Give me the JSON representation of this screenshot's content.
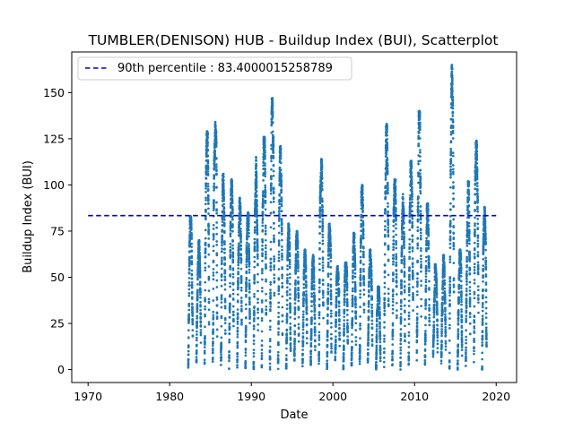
{
  "chart_data": {
    "type": "scatter",
    "title": "TUMBLER(DENISON) HUB - Buildup Index (BUI), Scatterplot",
    "xlabel": "Date",
    "ylabel": "Buildup Index (BUI)",
    "xlim": [
      1968,
      2022.5
    ],
    "ylim": [
      -7,
      172
    ],
    "x_ticks": [
      1970,
      1980,
      1990,
      2000,
      2010,
      2020
    ],
    "y_ticks": [
      0,
      25,
      50,
      75,
      100,
      125,
      150
    ],
    "grid": false,
    "legend_position": "top-left",
    "point_color": "#1f77b4",
    "series": [
      {
        "kind": "scatter",
        "season_start_day": 100,
        "season_length_days": 200,
        "seasons": [
          {
            "year": 1982,
            "max": 83
          },
          {
            "year": 1983,
            "max": 70
          },
          {
            "year": 1984,
            "max": 129
          },
          {
            "year": 1985,
            "max": 134
          },
          {
            "year": 1986,
            "max": 106
          },
          {
            "year": 1987,
            "max": 103
          },
          {
            "year": 1988,
            "max": 93
          },
          {
            "year": 1989,
            "max": 85
          },
          {
            "year": 1990,
            "max": 115
          },
          {
            "year": 1991,
            "max": 126
          },
          {
            "year": 1992,
            "max": 147
          },
          {
            "year": 1993,
            "max": 121
          },
          {
            "year": 1994,
            "max": 79
          },
          {
            "year": 1995,
            "max": 75
          },
          {
            "year": 1996,
            "max": 65
          },
          {
            "year": 1997,
            "max": 62
          },
          {
            "year": 1998,
            "max": 114
          },
          {
            "year": 1999,
            "max": 79
          },
          {
            "year": 2000,
            "max": 56
          },
          {
            "year": 2001,
            "max": 58
          },
          {
            "year": 2002,
            "max": 74
          },
          {
            "year": 2003,
            "max": 100
          },
          {
            "year": 2004,
            "max": 65
          },
          {
            "year": 2005,
            "max": 45
          },
          {
            "year": 2006,
            "max": 133
          },
          {
            "year": 2007,
            "max": 103
          },
          {
            "year": 2008,
            "max": 95
          },
          {
            "year": 2009,
            "max": 113
          },
          {
            "year": 2010,
            "max": 140
          },
          {
            "year": 2011,
            "max": 90
          },
          {
            "year": 2012,
            "max": 57
          },
          {
            "year": 2013,
            "max": 62
          },
          {
            "year": 2014,
            "max": 165
          },
          {
            "year": 2015,
            "max": 65
          },
          {
            "year": 2016,
            "max": 102
          },
          {
            "year": 2017,
            "max": 124
          },
          {
            "year": 2018,
            "max": 88
          }
        ]
      },
      {
        "name": "90th percentile : 83.4000015258789",
        "kind": "hline",
        "y": 83.4000015258789,
        "x_range": [
          1970,
          2020
        ],
        "color": "#0000cc"
      }
    ],
    "legend": {
      "label": "90th percentile : 83.4000015258789"
    }
  }
}
